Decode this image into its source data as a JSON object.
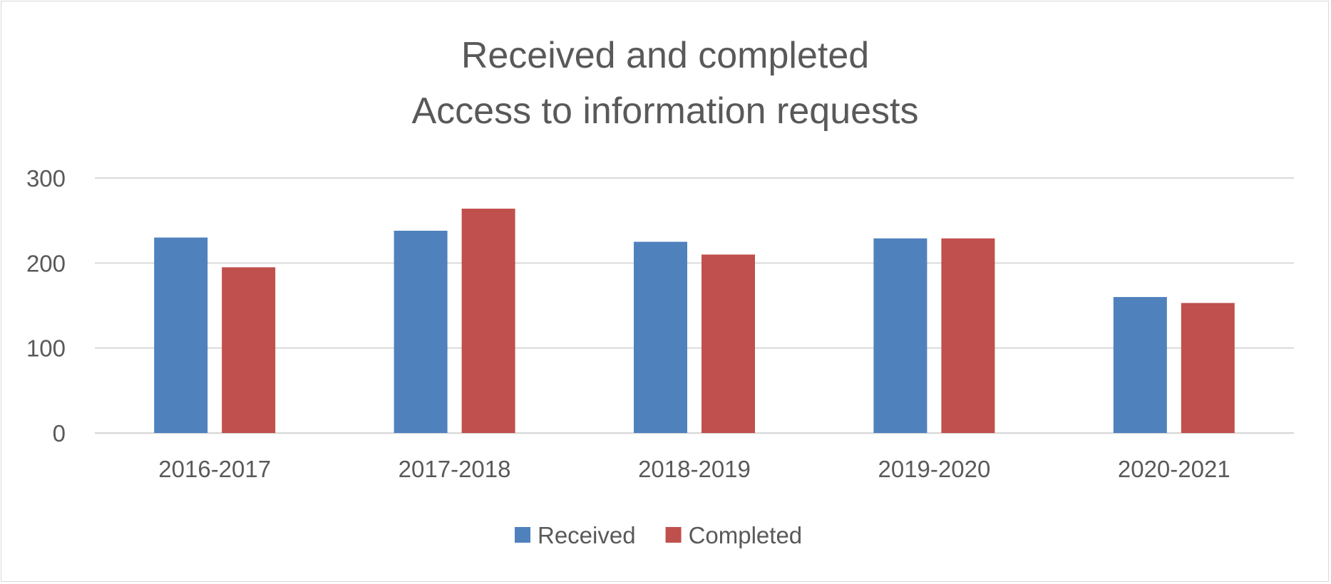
{
  "chart_data": {
    "type": "bar",
    "title_lines": [
      "Received and completed",
      "Access to information requests"
    ],
    "categories": [
      "2016-2017",
      "2017-2018",
      "2018-2019",
      "2019-2020",
      "2020-2021"
    ],
    "series": [
      {
        "name": "Received",
        "color": "#4f81bd",
        "values": [
          230,
          238,
          225,
          229,
          160
        ]
      },
      {
        "name": "Completed",
        "color": "#c0504d",
        "values": [
          195,
          264,
          210,
          229,
          153
        ]
      }
    ],
    "ylim": [
      0,
      300
    ],
    "yticks": [
      0,
      100,
      200,
      300
    ],
    "grid": true,
    "legend_position": "bottom"
  }
}
